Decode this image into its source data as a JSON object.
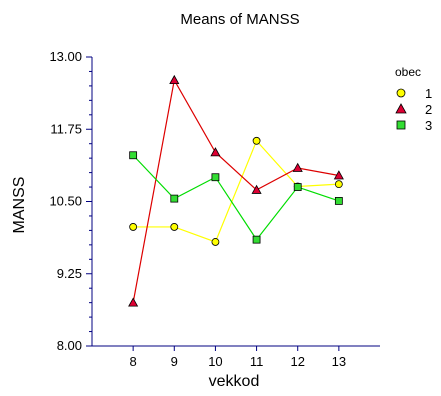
{
  "chart_data": {
    "type": "line",
    "title": "Means of MANSS",
    "xlabel": "vekkod",
    "ylabel": "MANSS",
    "x": [
      8,
      9,
      10,
      11,
      12,
      13
    ],
    "xlim": [
      7,
      14
    ],
    "ylim": [
      8.0,
      13.0
    ],
    "yticks": [
      "8.00",
      "9.25",
      "10.50",
      "11.75",
      "13.00"
    ],
    "xticks": [
      "8",
      "9",
      "10",
      "11",
      "12",
      "13"
    ],
    "grid": false,
    "legend": {
      "title": "obec",
      "placement": "top-right"
    },
    "series": [
      {
        "name": "1",
        "marker": "circle",
        "color": "#ffff00",
        "values": [
          10.06,
          10.06,
          9.8,
          11.55,
          10.76,
          10.8
        ]
      },
      {
        "name": "2",
        "marker": "triangle",
        "color": "#dd0033",
        "values": [
          8.75,
          12.6,
          11.35,
          10.7,
          11.08,
          10.95
        ]
      },
      {
        "name": "3",
        "marker": "square",
        "color": "#33dd33",
        "values": [
          11.3,
          10.55,
          10.92,
          9.84,
          10.75,
          10.51
        ]
      }
    ]
  }
}
